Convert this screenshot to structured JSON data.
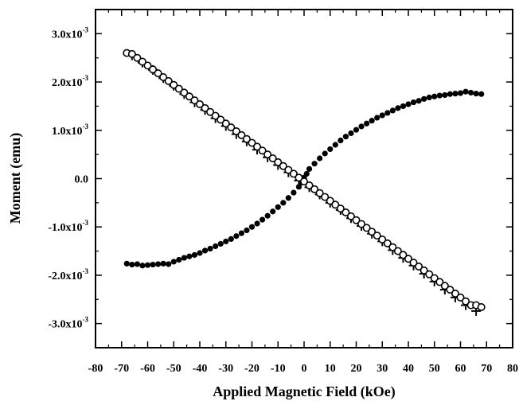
{
  "chart_data": {
    "type": "scatter",
    "title": "",
    "xlabel": "Applied Magnetic Field (kOe)",
    "ylabel": "Moment (emu)",
    "xlim": [
      -80,
      80
    ],
    "ylim": [
      -0.0035,
      0.0035
    ],
    "xticks": [
      -80,
      -70,
      -60,
      -50,
      -40,
      -30,
      -20,
      -10,
      0,
      10,
      20,
      30,
      40,
      50,
      60,
      70,
      80
    ],
    "xtick_labels": [
      "-80",
      "-70",
      "-60",
      "-50",
      "-40",
      "-30",
      "-20",
      "-10",
      "0",
      "10",
      "20",
      "30",
      "40",
      "50",
      "60",
      "70",
      "80"
    ],
    "yticks": [
      {
        "value": -0.003,
        "mantissa": "-3.0x10",
        "exp": "-3"
      },
      {
        "value": -0.002,
        "mantissa": "-2.0x10",
        "exp": "-3"
      },
      {
        "value": -0.001,
        "mantissa": "-1.0x10",
        "exp": "-3"
      },
      {
        "value": 0,
        "mantissa": "0.0",
        "exp": ""
      },
      {
        "value": 0.001,
        "mantissa": "1.0x10",
        "exp": "-3"
      },
      {
        "value": 0.002,
        "mantissa": "2.0x10",
        "exp": "-3"
      },
      {
        "value": 0.003,
        "mantissa": "3.0x10",
        "exp": "-3"
      }
    ],
    "grid": false,
    "series": [
      {
        "marker": "filled-circle",
        "color": "#000000",
        "points": [
          [
            -68,
            -0.00176
          ],
          [
            -66,
            -0.00178
          ],
          [
            -64,
            -0.00177
          ],
          [
            -62,
            -0.0018
          ],
          [
            -60,
            -0.00179
          ],
          [
            -58,
            -0.00178
          ],
          [
            -56,
            -0.00177
          ],
          [
            -54,
            -0.00176
          ],
          [
            -52,
            -0.00177
          ],
          [
            -50,
            -0.00172
          ],
          [
            -48,
            -0.00168
          ],
          [
            -46,
            -0.00164
          ],
          [
            -44,
            -0.00161
          ],
          [
            -42,
            -0.00158
          ],
          [
            -40,
            -0.00154
          ],
          [
            -38,
            -0.00149
          ],
          [
            -36,
            -0.00145
          ],
          [
            -34,
            -0.0014
          ],
          [
            -32,
            -0.00135
          ],
          [
            -30,
            -0.0013
          ],
          [
            -28,
            -0.00125
          ],
          [
            -26,
            -0.00119
          ],
          [
            -24,
            -0.00113
          ],
          [
            -22,
            -0.00107
          ],
          [
            -20,
            -0.001
          ],
          [
            -18,
            -0.00093
          ],
          [
            -16,
            -0.00085
          ],
          [
            -14,
            -0.00077
          ],
          [
            -12,
            -0.00068
          ],
          [
            -10,
            -0.00059
          ],
          [
            -8,
            -0.0005
          ],
          [
            -6,
            -0.0004
          ],
          [
            -4,
            -0.00029
          ],
          [
            -2,
            -0.00017
          ],
          [
            -1,
            -8e-05
          ],
          [
            0,
            2e-05
          ],
          [
            1,
            0.0001
          ],
          [
            2,
            0.0002
          ],
          [
            4,
            0.00031
          ],
          [
            6,
            0.00042
          ],
          [
            8,
            0.00052
          ],
          [
            10,
            0.00061
          ],
          [
            12,
            0.0007
          ],
          [
            14,
            0.00079
          ],
          [
            16,
            0.00087
          ],
          [
            18,
            0.00094
          ],
          [
            20,
            0.00101
          ],
          [
            22,
            0.00108
          ],
          [
            24,
            0.00114
          ],
          [
            26,
            0.0012
          ],
          [
            28,
            0.00126
          ],
          [
            30,
            0.00131
          ],
          [
            32,
            0.00136
          ],
          [
            34,
            0.00141
          ],
          [
            36,
            0.00146
          ],
          [
            38,
            0.0015
          ],
          [
            40,
            0.00154
          ],
          [
            42,
            0.00158
          ],
          [
            44,
            0.00161
          ],
          [
            46,
            0.00165
          ],
          [
            48,
            0.00168
          ],
          [
            50,
            0.0017
          ],
          [
            52,
            0.00172
          ],
          [
            54,
            0.00173
          ],
          [
            56,
            0.00175
          ],
          [
            58,
            0.00176
          ],
          [
            60,
            0.00177
          ],
          [
            62,
            0.0018
          ],
          [
            64,
            0.00178
          ],
          [
            66,
            0.00176
          ],
          [
            68,
            0.00175
          ]
        ]
      },
      {
        "marker": "plus",
        "color": "#000000",
        "points": [
          [
            -66,
            0.00255
          ],
          [
            -62,
            0.0024
          ],
          [
            -58,
            0.00225
          ],
          [
            -54,
            0.00208
          ],
          [
            -50,
            0.00192
          ],
          [
            -46,
            0.00175
          ],
          [
            -42,
            0.00158
          ],
          [
            -38,
            0.00142
          ],
          [
            -34,
            0.00125
          ],
          [
            -30,
            0.00109
          ],
          [
            -26,
            0.00092
          ],
          [
            -22,
            0.00077
          ],
          [
            -18,
            0.0006
          ],
          [
            -14,
            0.00044
          ],
          [
            -10,
            0.00028
          ],
          [
            -6,
            0.00013
          ],
          [
            -2,
            -4e-05
          ],
          [
            2,
            -0.00018
          ],
          [
            6,
            -0.00033
          ],
          [
            10,
            -0.0005
          ],
          [
            14,
            -0.00065
          ],
          [
            18,
            -0.00082
          ],
          [
            22,
            -0.00098
          ],
          [
            26,
            -0.00114
          ],
          [
            30,
            -0.0013
          ],
          [
            34,
            -0.00148
          ],
          [
            38,
            -0.00164
          ],
          [
            42,
            -0.0018
          ],
          [
            46,
            -0.00197
          ],
          [
            50,
            -0.00213
          ],
          [
            54,
            -0.0023
          ],
          [
            58,
            -0.00246
          ],
          [
            62,
            -0.00262
          ],
          [
            66,
            -0.00274
          ]
        ]
      },
      {
        "marker": "open-circle",
        "color": "#000000",
        "points": [
          [
            -68,
            0.0026
          ],
          [
            -66,
            0.00258
          ],
          [
            -64,
            0.0025
          ],
          [
            -62,
            0.00242
          ],
          [
            -60,
            0.00234
          ],
          [
            -58,
            0.00226
          ],
          [
            -56,
            0.00218
          ],
          [
            -54,
            0.0021
          ],
          [
            -52,
            0.00202
          ],
          [
            -50,
            0.00194
          ],
          [
            -48,
            0.00186
          ],
          [
            -46,
            0.00178
          ],
          [
            -44,
            0.0017
          ],
          [
            -42,
            0.00162
          ],
          [
            -40,
            0.00154
          ],
          [
            -38,
            0.00146
          ],
          [
            -36,
            0.00138
          ],
          [
            -34,
            0.0013
          ],
          [
            -32,
            0.00122
          ],
          [
            -30,
            0.00114
          ],
          [
            -28,
            0.00106
          ],
          [
            -26,
            0.00098
          ],
          [
            -24,
            0.0009
          ],
          [
            -22,
            0.00082
          ],
          [
            -20,
            0.00074
          ],
          [
            -18,
            0.00066
          ],
          [
            -16,
            0.00058
          ],
          [
            -14,
            0.0005
          ],
          [
            -12,
            0.00042
          ],
          [
            -10,
            0.00034
          ],
          [
            -8,
            0.00026
          ],
          [
            -6,
            0.00018
          ],
          [
            -4,
            0.0001
          ],
          [
            -2,
            2e-05
          ],
          [
            0,
            -6e-05
          ],
          [
            2,
            -0.00014
          ],
          [
            4,
            -0.00022
          ],
          [
            6,
            -0.0003
          ],
          [
            8,
            -0.00038
          ],
          [
            10,
            -0.00046
          ],
          [
            12,
            -0.00054
          ],
          [
            14,
            -0.00062
          ],
          [
            16,
            -0.0007
          ],
          [
            18,
            -0.00078
          ],
          [
            20,
            -0.00086
          ],
          [
            22,
            -0.00094
          ],
          [
            24,
            -0.00102
          ],
          [
            26,
            -0.0011
          ],
          [
            28,
            -0.00118
          ],
          [
            30,
            -0.00126
          ],
          [
            32,
            -0.00134
          ],
          [
            34,
            -0.00142
          ],
          [
            36,
            -0.0015
          ],
          [
            38,
            -0.00158
          ],
          [
            40,
            -0.00166
          ],
          [
            42,
            -0.00174
          ],
          [
            44,
            -0.00182
          ],
          [
            46,
            -0.0019
          ],
          [
            48,
            -0.00198
          ],
          [
            50,
            -0.00206
          ],
          [
            52,
            -0.00214
          ],
          [
            54,
            -0.00222
          ],
          [
            56,
            -0.0023
          ],
          [
            58,
            -0.00238
          ],
          [
            60,
            -0.00246
          ],
          [
            62,
            -0.00254
          ],
          [
            64,
            -0.00262
          ],
          [
            66,
            -0.00262
          ],
          [
            68,
            -0.00266
          ]
        ]
      }
    ]
  }
}
